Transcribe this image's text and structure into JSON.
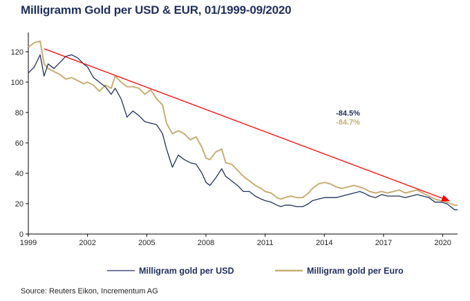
{
  "title": "Milligramm Gold per USD & EUR, 01/1999-09/2020",
  "source": "Source: Reuters Eikon, Incrementum AG",
  "colors": {
    "usd": "#1f2f5c",
    "eur": "#c8ad72",
    "trend": "#ff0000",
    "text": "#1f2f5c"
  },
  "chart_data": {
    "type": "line",
    "title": "Milligramm Gold per USD & EUR, 01/1999-09/2020",
    "xlim": [
      1999,
      2020.75
    ],
    "ylim": [
      0,
      130
    ],
    "xticks": [
      1999,
      2002,
      2005,
      2008,
      2011,
      2014,
      2017,
      2020
    ],
    "yticks": [
      0,
      20,
      40,
      60,
      80,
      100,
      120
    ],
    "grid": false,
    "legend_position": "bottom",
    "series": [
      {
        "name": "Milligram gold per USD",
        "color": "#1f2f5c",
        "points": [
          [
            1999.0,
            106
          ],
          [
            1999.3,
            110
          ],
          [
            1999.6,
            118
          ],
          [
            1999.8,
            104
          ],
          [
            2000.0,
            112
          ],
          [
            2000.3,
            109
          ],
          [
            2000.6,
            113
          ],
          [
            2000.9,
            117
          ],
          [
            2001.2,
            118
          ],
          [
            2001.5,
            116
          ],
          [
            2001.8,
            112
          ],
          [
            2002.0,
            110
          ],
          [
            2002.3,
            103
          ],
          [
            2002.6,
            100
          ],
          [
            2002.9,
            97
          ],
          [
            2003.2,
            92
          ],
          [
            2003.4,
            96
          ],
          [
            2003.7,
            89
          ],
          [
            2004.0,
            77
          ],
          [
            2004.3,
            81
          ],
          [
            2004.6,
            78
          ],
          [
            2004.9,
            74
          ],
          [
            2005.2,
            73
          ],
          [
            2005.5,
            72
          ],
          [
            2005.8,
            66
          ],
          [
            2006.0,
            56
          ],
          [
            2006.3,
            44
          ],
          [
            2006.6,
            52
          ],
          [
            2006.9,
            49
          ],
          [
            2007.2,
            47
          ],
          [
            2007.5,
            46
          ],
          [
            2007.8,
            40
          ],
          [
            2008.0,
            34
          ],
          [
            2008.2,
            32
          ],
          [
            2008.5,
            37
          ],
          [
            2008.8,
            43
          ],
          [
            2009.0,
            38
          ],
          [
            2009.3,
            35
          ],
          [
            2009.6,
            32
          ],
          [
            2009.9,
            28
          ],
          [
            2010.2,
            28
          ],
          [
            2010.5,
            25
          ],
          [
            2010.8,
            23
          ],
          [
            2011.0,
            22
          ],
          [
            2011.3,
            21
          ],
          [
            2011.6,
            19
          ],
          [
            2011.8,
            18
          ],
          [
            2012.0,
            19
          ],
          [
            2012.3,
            19
          ],
          [
            2012.6,
            18
          ],
          [
            2012.9,
            18
          ],
          [
            2013.2,
            20
          ],
          [
            2013.4,
            22
          ],
          [
            2013.7,
            23
          ],
          [
            2014.0,
            24
          ],
          [
            2014.3,
            24
          ],
          [
            2014.6,
            24
          ],
          [
            2014.9,
            25
          ],
          [
            2015.2,
            26
          ],
          [
            2015.5,
            27
          ],
          [
            2015.8,
            28
          ],
          [
            2016.0,
            27
          ],
          [
            2016.3,
            25
          ],
          [
            2016.6,
            24
          ],
          [
            2016.9,
            26
          ],
          [
            2017.2,
            25
          ],
          [
            2017.5,
            25
          ],
          [
            2017.8,
            25
          ],
          [
            2018.1,
            24
          ],
          [
            2018.4,
            25
          ],
          [
            2018.7,
            26
          ],
          [
            2019.0,
            25
          ],
          [
            2019.3,
            24
          ],
          [
            2019.6,
            21
          ],
          [
            2019.9,
            21
          ],
          [
            2020.2,
            20
          ],
          [
            2020.4,
            18
          ],
          [
            2020.6,
            16
          ],
          [
            2020.75,
            16
          ]
        ]
      },
      {
        "name": "Milligram gold per Euro",
        "color": "#c8ad72",
        "points": [
          [
            1999.0,
            123
          ],
          [
            1999.3,
            126
          ],
          [
            1999.6,
            127
          ],
          [
            1999.8,
            112
          ],
          [
            2000.0,
            109
          ],
          [
            2000.3,
            107
          ],
          [
            2000.6,
            105
          ],
          [
            2000.9,
            102
          ],
          [
            2001.2,
            103
          ],
          [
            2001.5,
            101
          ],
          [
            2001.8,
            99
          ],
          [
            2002.0,
            100
          ],
          [
            2002.3,
            98
          ],
          [
            2002.6,
            94
          ],
          [
            2002.9,
            98
          ],
          [
            2003.2,
            96
          ],
          [
            2003.4,
            104
          ],
          [
            2003.7,
            100
          ],
          [
            2004.0,
            97
          ],
          [
            2004.3,
            97
          ],
          [
            2004.6,
            96
          ],
          [
            2004.9,
            92
          ],
          [
            2005.2,
            95
          ],
          [
            2005.5,
            89
          ],
          [
            2005.8,
            85
          ],
          [
            2006.0,
            73
          ],
          [
            2006.3,
            66
          ],
          [
            2006.6,
            68
          ],
          [
            2006.9,
            66
          ],
          [
            2007.2,
            62
          ],
          [
            2007.5,
            64
          ],
          [
            2007.8,
            57
          ],
          [
            2008.0,
            50
          ],
          [
            2008.2,
            49
          ],
          [
            2008.5,
            54
          ],
          [
            2008.8,
            56
          ],
          [
            2009.0,
            47
          ],
          [
            2009.3,
            46
          ],
          [
            2009.6,
            42
          ],
          [
            2009.9,
            38
          ],
          [
            2010.2,
            35
          ],
          [
            2010.5,
            32
          ],
          [
            2010.8,
            30
          ],
          [
            2011.0,
            28
          ],
          [
            2011.3,
            27
          ],
          [
            2011.6,
            24
          ],
          [
            2011.8,
            23
          ],
          [
            2012.0,
            24
          ],
          [
            2012.3,
            25
          ],
          [
            2012.6,
            24
          ],
          [
            2012.9,
            24
          ],
          [
            2013.2,
            27
          ],
          [
            2013.4,
            30
          ],
          [
            2013.7,
            33
          ],
          [
            2014.0,
            34
          ],
          [
            2014.3,
            33
          ],
          [
            2014.6,
            31
          ],
          [
            2014.9,
            30
          ],
          [
            2015.2,
            31
          ],
          [
            2015.5,
            32
          ],
          [
            2015.8,
            31
          ],
          [
            2016.0,
            30
          ],
          [
            2016.3,
            28
          ],
          [
            2016.6,
            27
          ],
          [
            2016.9,
            28
          ],
          [
            2017.2,
            27
          ],
          [
            2017.5,
            28
          ],
          [
            2017.8,
            29
          ],
          [
            2018.1,
            27
          ],
          [
            2018.4,
            28
          ],
          [
            2018.7,
            29
          ],
          [
            2019.0,
            27
          ],
          [
            2019.3,
            25
          ],
          [
            2019.6,
            23
          ],
          [
            2019.9,
            22
          ],
          [
            2020.2,
            21
          ],
          [
            2020.4,
            20
          ],
          [
            2020.6,
            19
          ],
          [
            2020.75,
            19
          ]
        ]
      }
    ],
    "trend_arrow": {
      "from": [
        1999.8,
        122
      ],
      "to": [
        2020.3,
        22
      ]
    },
    "annotations": [
      {
        "text": "-84.5%",
        "x": 2015.2,
        "y": 78,
        "color": "#1f2f5c"
      },
      {
        "text": "-84.7%",
        "x": 2015.2,
        "y": 72,
        "color": "#c8ad72"
      }
    ]
  }
}
